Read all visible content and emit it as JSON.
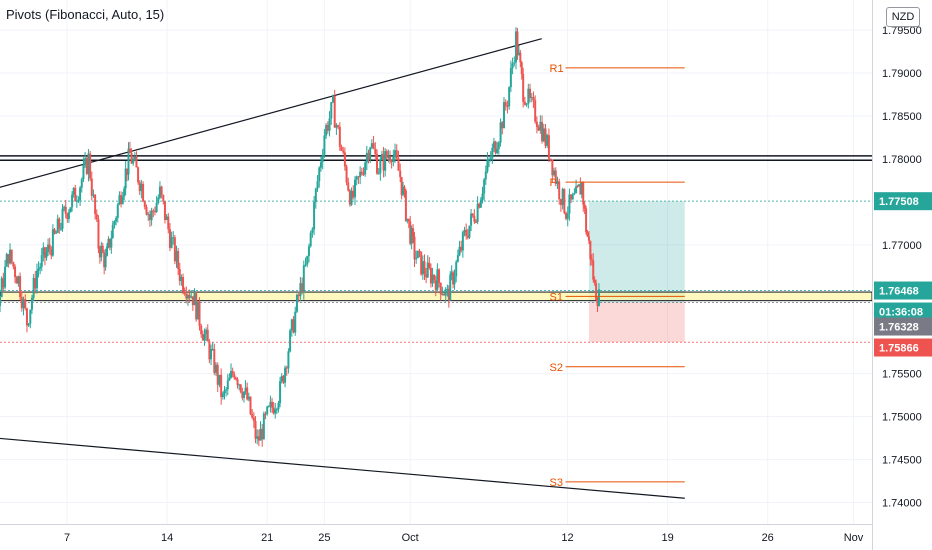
{
  "chart_data": {
    "type": "candlestick",
    "title": "",
    "indicator_label": "Pivots (Fibonacci, Auto, 15)",
    "currency": "NZD",
    "ylim": [
      1.7375,
      1.7985
    ],
    "xlim_days": [
      -8.4,
      31.0
    ],
    "y_ticks": [
      {
        "label": "1.79500",
        "value": 1.795
      },
      {
        "label": "1.79000",
        "value": 1.79
      },
      {
        "label": "1.78500",
        "value": 1.785
      },
      {
        "label": "1.78000",
        "value": 1.78
      },
      {
        "label": "1.77000",
        "value": 1.77
      },
      {
        "label": "1.75500",
        "value": 1.755
      },
      {
        "label": "1.75000",
        "value": 1.75
      },
      {
        "label": "1.74500",
        "value": 1.745
      },
      {
        "label": "1.74000",
        "value": 1.74
      }
    ],
    "x_ticks": [
      {
        "label": "7",
        "day": 0
      },
      {
        "label": "14",
        "day": 7
      },
      {
        "label": "21",
        "day": 14
      },
      {
        "label": "25",
        "day": 18
      },
      {
        "label": "Oct",
        "day": 24
      },
      {
        "label": "12",
        "day": 35
      },
      {
        "label": "19",
        "day": 42
      },
      {
        "label": "26",
        "day": 49
      },
      {
        "label": "Nov",
        "day": 55
      }
    ],
    "price_markers": [
      {
        "label": "1.77508",
        "value": 1.77508,
        "color": "#26a69a"
      },
      {
        "label": "1.76468",
        "value": 1.76468,
        "color": "#26a69a"
      },
      {
        "label": "01:36:08",
        "value": 1.76395,
        "color": "#26a69a"
      },
      {
        "label": "1.76328",
        "value": 1.76328,
        "color": "#787b86"
      },
      {
        "label": "1.75866",
        "value": 1.75866,
        "color": "#ef5350"
      }
    ],
    "pivots": [
      {
        "label": "R1",
        "value": 1.7906,
        "from_day": 35,
        "to_day": 43.2
      },
      {
        "label": "P",
        "value": 1.7773,
        "from_day": 35,
        "to_day": 43.2
      },
      {
        "label": "S1",
        "value": 1.764,
        "from_day": 35,
        "to_day": 43.2
      },
      {
        "label": "S2",
        "value": 1.7558,
        "from_day": 35,
        "to_day": 43.2
      },
      {
        "label": "S3",
        "value": 1.7424,
        "from_day": 35,
        "to_day": 43.2
      }
    ],
    "trendlines": [
      {
        "from": [
          -8.4,
          1.775
        ],
        "to": [
          33.2,
          1.794
        ]
      },
      {
        "from": [
          -8.4,
          1.748
        ],
        "to": [
          43.2,
          1.7405
        ]
      }
    ],
    "horizontal_lines": [
      {
        "value": 1.78035,
        "color": "#131722"
      },
      {
        "value": 1.77985,
        "color": "#131722"
      }
    ],
    "support_band": [
      1.7635,
      1.7645
    ],
    "position": {
      "entry": 1.76328,
      "target": 1.77508,
      "stop": 1.75866,
      "from_day": 36.5,
      "to_day": 43.2
    },
    "colors": {
      "up": "#26a69a",
      "down": "#ef5350",
      "pivot": "#e65100",
      "grid": "#f0f3fa"
    },
    "series": [
      {
        "name": "",
        "segments": [
          [
            -8.4,
            1.77
          ],
          [
            -7.8,
            1.761
          ],
          [
            -6.8,
            1.753
          ],
          [
            -5.8,
            1.748
          ],
          [
            -5.3,
            1.754
          ],
          [
            -4.8,
            1.763
          ],
          [
            -4.1,
            1.769
          ],
          [
            -3.4,
            1.766
          ],
          [
            -2.8,
            1.761
          ],
          [
            -2.1,
            1.767
          ],
          [
            -1.1,
            1.77
          ],
          [
            -0.2,
            1.7735
          ],
          [
            0.8,
            1.7765
          ],
          [
            1.5,
            1.78
          ],
          [
            2.2,
            1.77
          ],
          [
            2.7,
            1.768
          ],
          [
            3.2,
            1.772
          ],
          [
            3.9,
            1.777
          ],
          [
            4.4,
            1.7805
          ],
          [
            5.2,
            1.777
          ],
          [
            5.8,
            1.773
          ],
          [
            6.5,
            1.776
          ],
          [
            7.2,
            1.771
          ],
          [
            8.0,
            1.766
          ],
          [
            8.8,
            1.764
          ],
          [
            9.5,
            1.76
          ],
          [
            10.3,
            1.756
          ],
          [
            10.9,
            1.752
          ],
          [
            11.7,
            1.7555
          ],
          [
            12.6,
            1.752
          ],
          [
            13.3,
            1.747
          ],
          [
            14.0,
            1.75
          ],
          [
            14.9,
            1.753
          ],
          [
            15.6,
            1.759
          ],
          [
            16.2,
            1.764
          ],
          [
            16.8,
            1.768
          ],
          [
            17.4,
            1.776
          ],
          [
            18.0,
            1.783
          ],
          [
            18.6,
            1.786
          ],
          [
            19.2,
            1.781
          ],
          [
            19.9,
            1.775
          ],
          [
            20.5,
            1.778
          ],
          [
            21.2,
            1.782
          ],
          [
            21.8,
            1.779
          ],
          [
            22.7,
            1.781
          ],
          [
            23.3,
            1.778
          ],
          [
            23.8,
            1.773
          ],
          [
            24.3,
            1.769
          ],
          [
            25.0,
            1.767
          ],
          [
            25.9,
            1.766
          ],
          [
            26.6,
            1.764
          ],
          [
            27.1,
            1.767
          ],
          [
            27.8,
            1.771
          ],
          [
            28.6,
            1.774
          ],
          [
            29.4,
            1.779
          ],
          [
            30.2,
            1.783
          ],
          [
            30.8,
            1.787
          ],
          [
            31.4,
            1.794
          ],
          [
            31.9,
            1.788
          ],
          [
            32.5,
            1.786
          ],
          [
            33.1,
            1.784
          ],
          [
            33.7,
            1.781
          ],
          [
            34.3,
            1.777
          ],
          [
            34.9,
            1.774
          ],
          [
            35.6,
            1.7755
          ],
          [
            36.0,
            1.777
          ],
          [
            36.3,
            1.772
          ],
          [
            36.6,
            1.769
          ],
          [
            36.9,
            1.765
          ],
          [
            37.2,
            1.7638
          ]
        ]
      }
    ]
  }
}
